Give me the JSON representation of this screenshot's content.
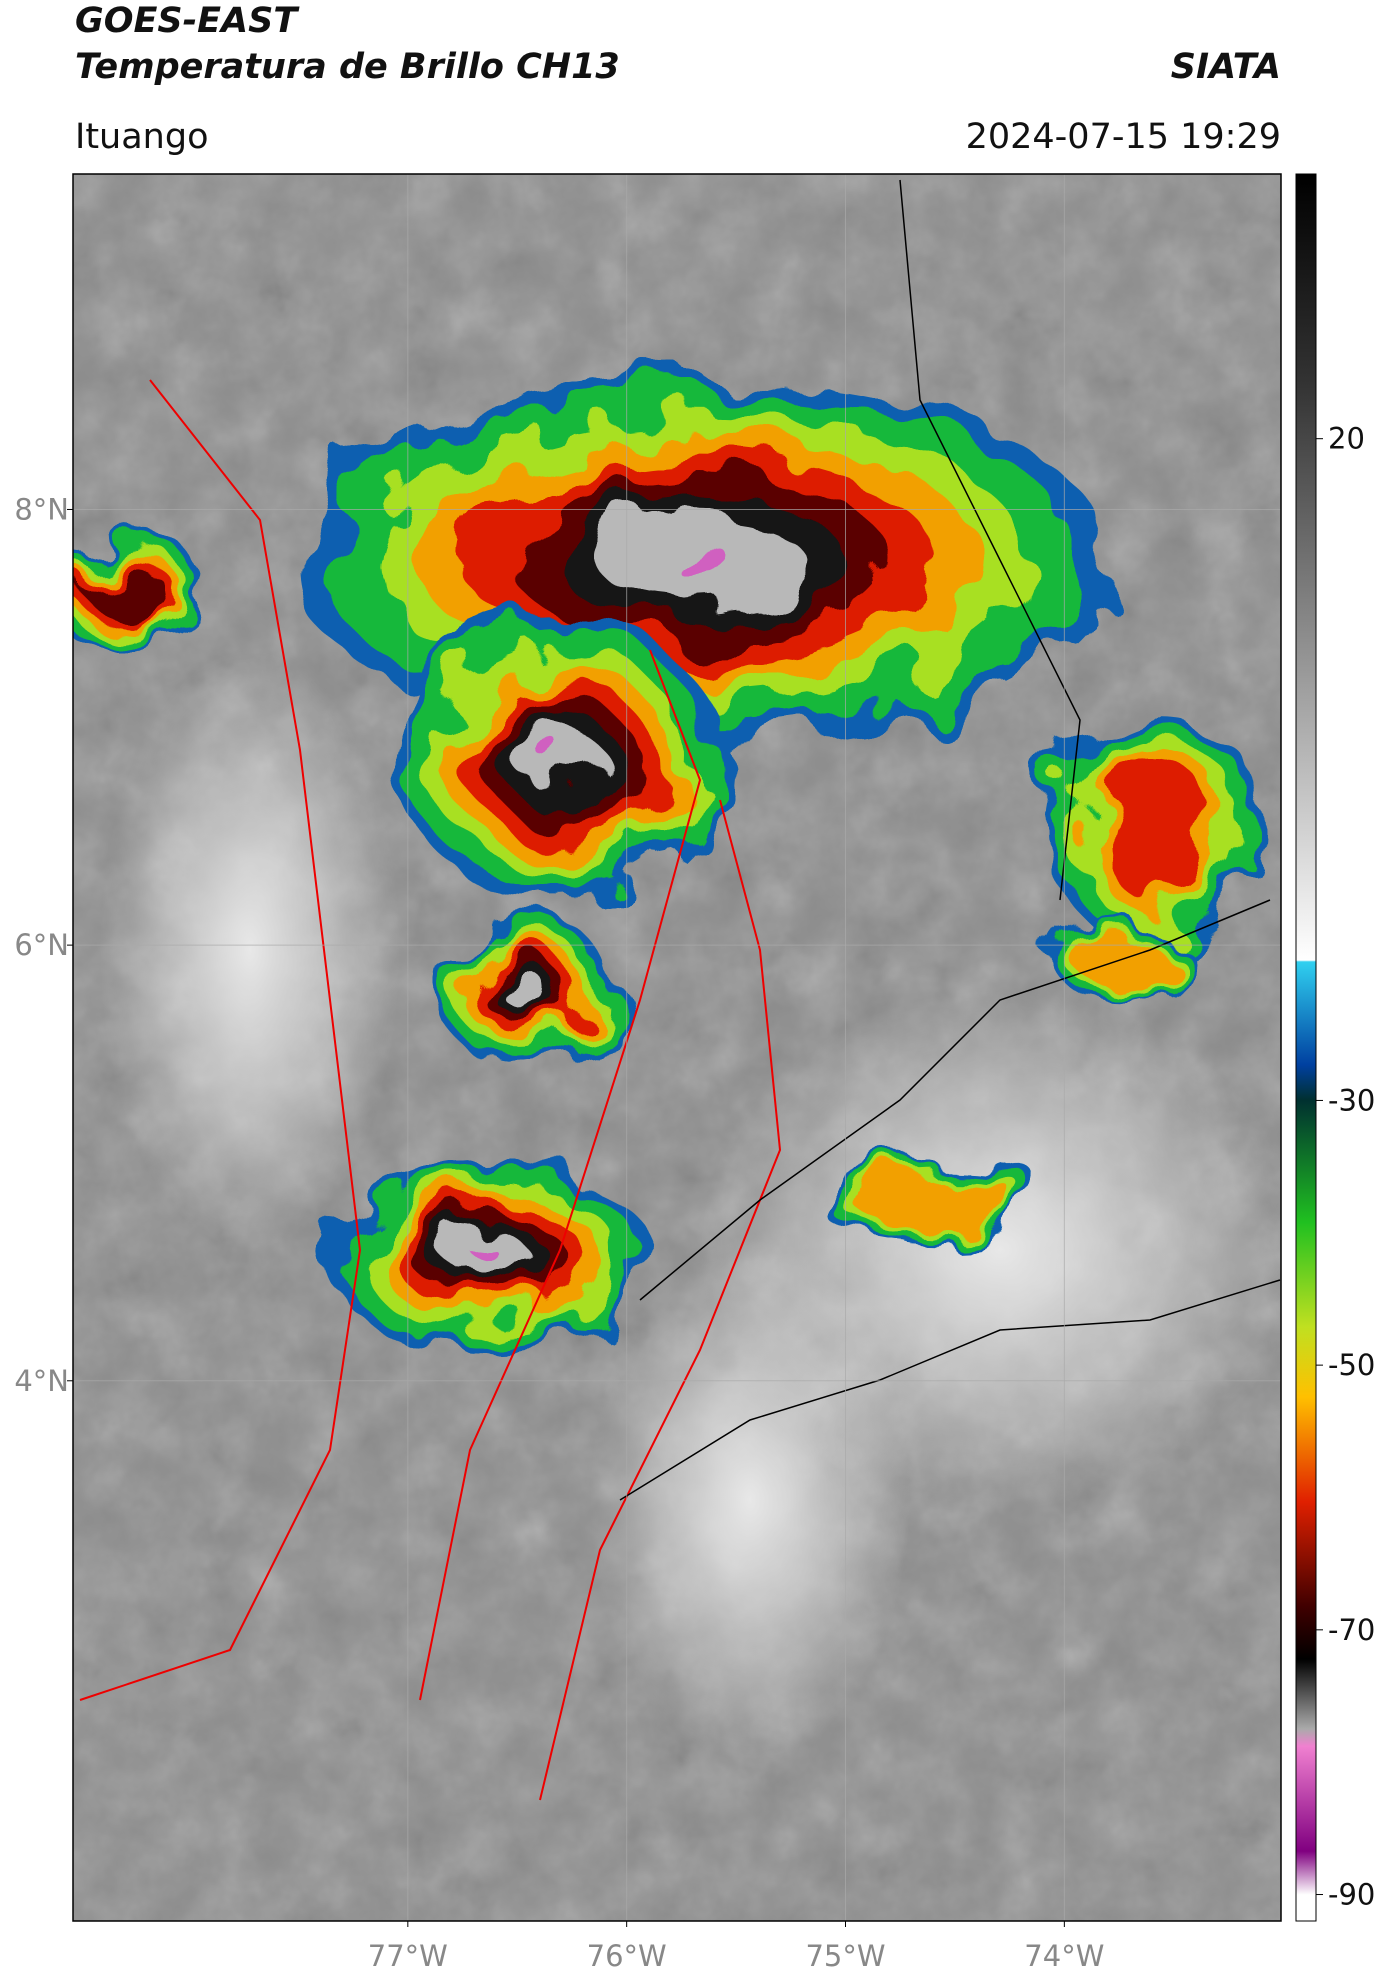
{
  "header": {
    "title": "GOES-EAST",
    "subtitle": "Temperatura de Brillo CH13",
    "source": "SIATA",
    "region": "Ituango",
    "datetime": "2024-07-15 19:29"
  },
  "map": {
    "xlim": [
      -78.53,
      -73.01
    ],
    "ylim": [
      1.52,
      9.54
    ],
    "xticks": [
      {
        "value": -77,
        "label": "77°W"
      },
      {
        "value": -76,
        "label": "76°W"
      },
      {
        "value": -75,
        "label": "75°W"
      },
      {
        "value": -74,
        "label": "74°W"
      }
    ],
    "yticks": [
      {
        "value": 8,
        "label": "8°N"
      },
      {
        "value": 6,
        "label": "6°N"
      },
      {
        "value": 4,
        "label": "4°N"
      }
    ],
    "grid": true
  },
  "colorbar": {
    "clim": [
      -92,
      40
    ],
    "ticks": [
      20,
      -30,
      -50,
      -70,
      -90
    ]
  }
}
